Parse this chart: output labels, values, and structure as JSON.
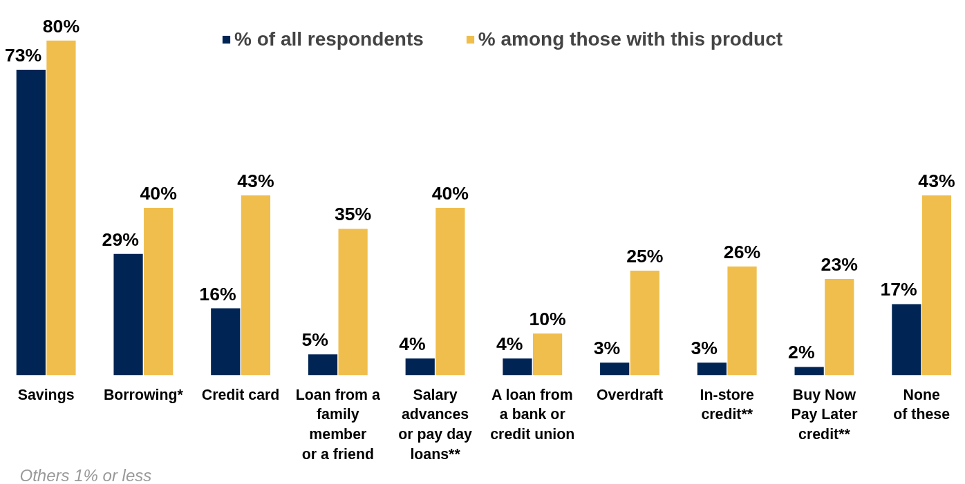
{
  "chart_data": {
    "type": "bar",
    "categories": [
      "Savings",
      "Borrowing*",
      "Credit card",
      "Loan from a\nfamily\nmember\nor a friend",
      "Salary\nadvances\nor pay day\nloans**",
      "A loan from\na bank or\ncredit union",
      "Overdraft",
      "In-store\ncredit**",
      "Buy Now\nPay Later\ncredit**",
      "None\nof these"
    ],
    "series": [
      {
        "name": "% of all respondents",
        "color": "#002554",
        "values": [
          73,
          29,
          16,
          5,
          4,
          4,
          3,
          3,
          2,
          17
        ],
        "value_labels": [
          "73%",
          "29%",
          "16%",
          "5%",
          "4%",
          "4%",
          "3%",
          "3%",
          "2%",
          "17%"
        ]
      },
      {
        "name": "% among those with this product",
        "color": "#f0be4c",
        "values": [
          80,
          40,
          43,
          35,
          40,
          10,
          25,
          26,
          23,
          43
        ],
        "value_labels": [
          "80%",
          "40%",
          "43%",
          "35%",
          "40%",
          "10%",
          "25%",
          "26%",
          "23%",
          "43%"
        ]
      }
    ],
    "tick_labels": "x",
    "legend": "top",
    "annotations": [
      "Others 1% or less"
    ]
  }
}
